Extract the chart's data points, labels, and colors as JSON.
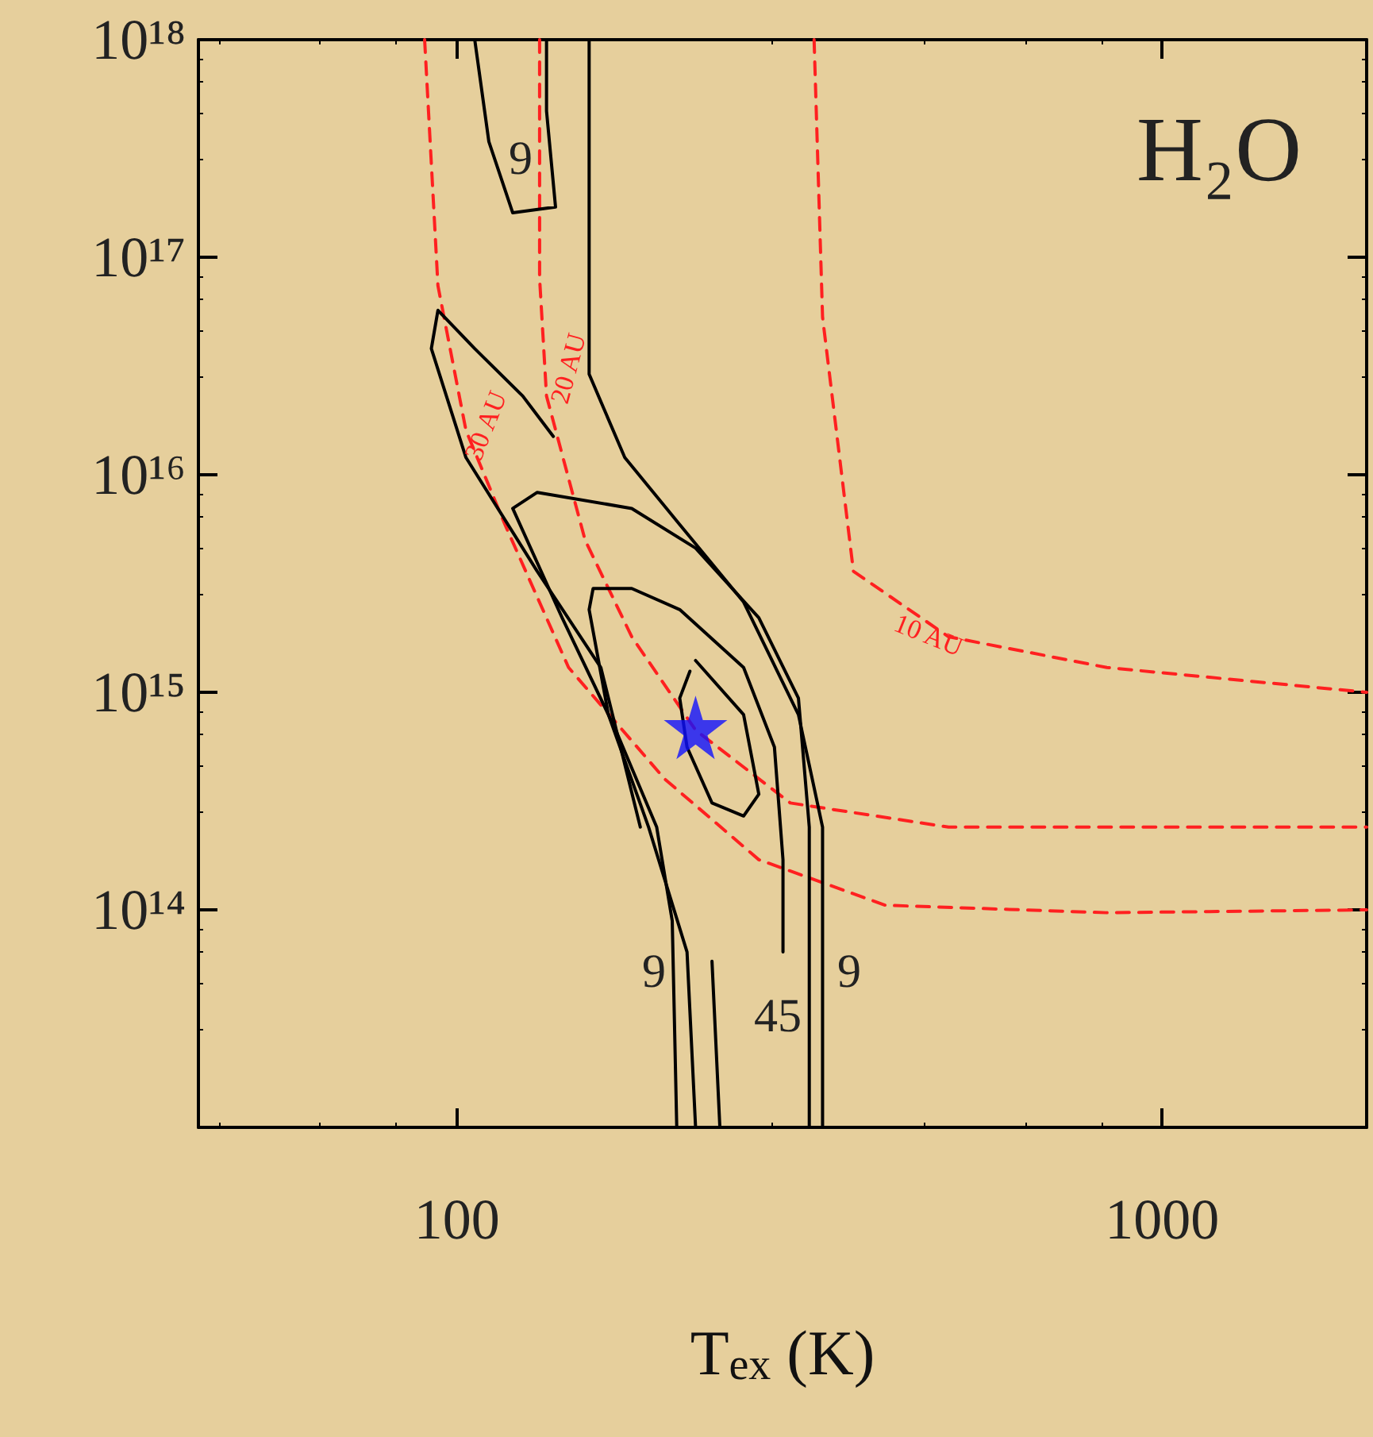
{
  "chart_data": {
    "type": "line",
    "title": "H₂O",
    "xlabel": "T$_{ex}$ (K)",
    "log": "xy",
    "grid": false,
    "legend": false,
    "xlim": [
      43,
      1950
    ],
    "xticks": [
      100,
      1000
    ],
    "ylim": [
      10000000000000.0,
      1e+18
    ],
    "yticks": [
      {
        "value": 10000000000000.0,
        "label": null
      },
      {
        "value": 100000000000000.0,
        "label": "10¹⁴"
      },
      {
        "value": 1000000000000000.0,
        "label": "10¹⁵"
      },
      {
        "value": 1e+16,
        "label": "10¹⁶"
      },
      {
        "value": 1e+17,
        "label": "10¹⁷"
      },
      {
        "value": 1e+18,
        "label": "10¹⁸"
      }
    ],
    "series": [
      {
        "name": "30 AU",
        "color": "#ff2020",
        "line_style": "dashed",
        "marker": "none",
        "x": [
          90,
          94,
          103,
          117,
          144,
          197,
          268,
          405,
          835,
          1950
        ],
        "values": [
          1e+18,
          7.4e+16,
          1.6e+16,
          5900000000000000.0,
          1300000000000000.0,
          400000000000000.0,
          170000000000000.0,
          105000000000000.0,
          97000000000000.0,
          100000000000000.0
        ]
      },
      {
        "name": "20 AU",
        "color": "#ff2020",
        "line_style": "dashed",
        "marker": "none",
        "x": [
          131,
          131,
          134,
          152,
          177,
          218,
          297,
          498,
          835,
          1950
        ],
        "values": [
          1e+18,
          8e+16,
          2.3e+16,
          5000000000000000.0,
          1800000000000000.0,
          670000000000000.0,
          310000000000000.0,
          240000000000000.0,
          240000000000000.0,
          240000000000000.0
        ]
      },
      {
        "name": "10 AU",
        "color": "#ff2020",
        "line_style": "dashed",
        "marker": "none",
        "x": [
          321,
          330,
          365,
          498,
          835,
          1950
        ],
        "values": [
          1e+18,
          5.3e+16,
          3600000000000000.0,
          1800000000000000.0,
          1300000000000000.0,
          1000000000000000.0
        ]
      },
      {
        "color": "#000000",
        "line_style": "solid",
        "marker": "none",
        "x": [
          106,
          111,
          120,
          138,
          134,
          134
        ],
        "values": [
          1e+18,
          3.4e+17,
          1.6e+17,
          1.7e+17,
          4.7e+17,
          1e+18
        ]
      },
      {
        "color": "#000000",
        "line_style": "solid",
        "marker": "none",
        "x": [
          154,
          154,
          173,
          207,
          255,
          305,
          330,
          330
        ],
        "values": [
          1e+18,
          2.9e+16,
          1.2e+16,
          5900000000000000.0,
          2600000000000000.0,
          790000000000000.0,
          240000000000000.0,
          10000000000000.0
        ]
      },
      {
        "color": "#000000",
        "line_style": "solid",
        "marker": "none",
        "x": [
          137,
          124,
          106,
          94,
          92,
          103,
          130,
          160,
          182
        ],
        "values": [
          1.5e+16,
          2.3e+16,
          3.8e+16,
          5.7e+16,
          3.8e+16,
          1.2e+16,
          3600000000000000.0,
          1300000000000000.0,
          240000000000000.0
        ]
      },
      {
        "color": "#000000",
        "line_style": "solid",
        "marker": "none",
        "x": [
          205,
          202,
          192,
          168,
          141,
          120,
          130,
          177,
          218,
          268,
          305,
          316,
          316
        ],
        "values": [
          10000000000000.0,
          89000000000000.0,
          240000000000000.0,
          670000000000000.0,
          2200000000000000.0,
          7000000000000000.0,
          8300000000000000.0,
          7000000000000000.0,
          4600000000000000.0,
          2200000000000000.0,
          940000000000000.0,
          240000000000000.0,
          10000000000000.0
        ]
      },
      {
        "color": "#000000",
        "line_style": "solid",
        "marker": "none",
        "x": [
          218,
          212,
          187,
          164,
          154,
          156,
          177,
          207,
          255,
          282,
          290,
          290
        ],
        "values": [
          10000000000000.0,
          64000000000000.0,
          240000000000000.0,
          790000000000000.0,
          2400000000000000.0,
          3000000000000000.0,
          3000000000000000.0,
          2400000000000000.0,
          1300000000000000.0,
          560000000000000.0,
          170000000000000.0,
          64000000000000.0
        ]
      },
      {
        "color": "#000000",
        "line_style": "solid",
        "marker": "none",
        "x": [
          236,
          230
        ],
        "values": [
          10000000000000.0,
          58000000000000.0
        ]
      },
      {
        "color": "#000000",
        "line_style": "solid",
        "marker": "none",
        "x": [
          218,
          255,
          268,
          255,
          230,
          212,
          207,
          214
        ],
        "values": [
          1400000000000000.0,
          790000000000000.0,
          340000000000000.0,
          270000000000000.0,
          310000000000000.0,
          560000000000000.0,
          940000000000000.0,
          1250000000000000.0
        ]
      },
      {
        "type": "scatter",
        "color": "#1010ff",
        "marker": "star",
        "x": [
          218
        ],
        "values": [
          690000000000000.0
        ]
      }
    ],
    "annotations": [
      "9",
      "9",
      "45",
      "9"
    ]
  }
}
